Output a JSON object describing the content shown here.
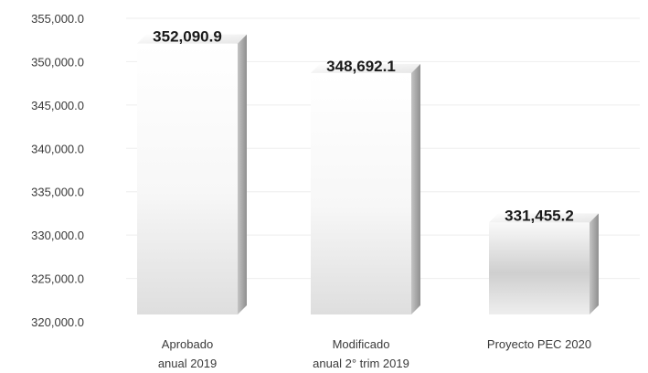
{
  "chart_data": {
    "type": "bar",
    "title": "",
    "xlabel": "",
    "ylabel": "",
    "categories": [
      [
        "Aprobado",
        "anual 2019"
      ],
      [
        "Modificado",
        "anual 2° trim 2019"
      ],
      [
        "Proyecto PEC 2020"
      ]
    ],
    "values": [
      352090.9,
      348692.1,
      331455.2
    ],
    "value_labels": [
      "352,090.9",
      "348,692.1",
      "331,455.2"
    ],
    "ylim": [
      320000,
      355000
    ],
    "yticks": [
      320000,
      325000,
      330000,
      335000,
      340000,
      345000,
      350000,
      355000
    ],
    "ytick_labels": [
      "320,000.0",
      "325,000.0",
      "330,000.0",
      "335,000.0",
      "340,000.0",
      "345,000.0",
      "350,000.0",
      "355,000.0"
    ],
    "grid": true,
    "legend": "none",
    "style": "3d-cylinder-bars",
    "colors": {
      "bar_light": "#ffffff",
      "bar_mid": "#d9d9d9",
      "bar_dark": "#9a9a9a",
      "grid": "#eeeeee"
    }
  }
}
